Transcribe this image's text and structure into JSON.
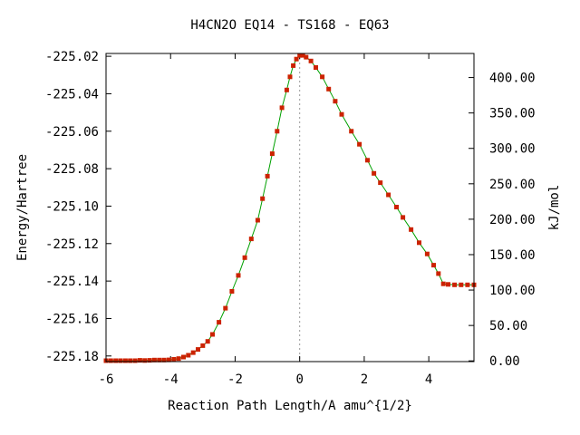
{
  "chart_data": {
    "type": "line",
    "title": "H4CN2O   EQ14 - TS168 - EQ63",
    "xlabel": "Reaction Path Length/A amu^{1/2}",
    "ylabel": "Energy/Hartree",
    "y2label": "kJ/mol",
    "xlim": [
      -6.0,
      5.4
    ],
    "ylim": [
      -225.183,
      -225.0185
    ],
    "y2lim": [
      -1.0,
      434.0
    ],
    "x_ticks": [
      {
        "value": -6,
        "label": "-6"
      },
      {
        "value": -4,
        "label": "-4"
      },
      {
        "value": -2,
        "label": "-2"
      },
      {
        "value": 0,
        "label": "0"
      },
      {
        "value": 2,
        "label": "2"
      },
      {
        "value": 4,
        "label": "4"
      }
    ],
    "y_ticks": [
      {
        "value": -225.02,
        "label": "-225.02"
      },
      {
        "value": -225.04,
        "label": "-225.04"
      },
      {
        "value": -225.06,
        "label": "-225.06"
      },
      {
        "value": -225.08,
        "label": "-225.08"
      },
      {
        "value": -225.1,
        "label": "-225.10"
      },
      {
        "value": -225.12,
        "label": "-225.12"
      },
      {
        "value": -225.14,
        "label": "-225.14"
      },
      {
        "value": -225.16,
        "label": "-225.16"
      },
      {
        "value": -225.18,
        "label": "-225.18"
      }
    ],
    "y2_ticks": [
      {
        "value": 0,
        "label": "0.00"
      },
      {
        "value": 50,
        "label": "50.00"
      },
      {
        "value": 100,
        "label": "100.00"
      },
      {
        "value": 150,
        "label": "150.00"
      },
      {
        "value": 200,
        "label": "200.00"
      },
      {
        "value": 250,
        "label": "250.00"
      },
      {
        "value": 300,
        "label": "300.00"
      },
      {
        "value": 350,
        "label": "350.00"
      },
      {
        "value": 400,
        "label": "400.00"
      }
    ],
    "ts_marker_x": 0.0,
    "line_color": "#00a000",
    "marker_color": "#cc2200",
    "reference_line_color": "#999999",
    "series": [
      {
        "x": [
          -6.0,
          -5.85,
          -5.7,
          -5.55,
          -5.4,
          -5.25,
          -5.1,
          -4.95,
          -4.8,
          -4.65,
          -4.5,
          -4.35,
          -4.2,
          -4.05,
          -3.9,
          -3.75,
          -3.6,
          -3.45,
          -3.3,
          -3.15,
          -3.0,
          -2.85,
          -2.7,
          -2.5,
          -2.3,
          -2.1,
          -1.9,
          -1.7,
          -1.5,
          -1.3,
          -1.15,
          -1.0,
          -0.85,
          -0.7,
          -0.55,
          -0.4,
          -0.3,
          -0.2,
          -0.1,
          0.0,
          0.1,
          0.2,
          0.35,
          0.5,
          0.7,
          0.9,
          1.1,
          1.3,
          1.6,
          1.85,
          2.1,
          2.3,
          2.5,
          2.75,
          3.0,
          3.2,
          3.45,
          3.7,
          3.95,
          4.15,
          4.3,
          4.45,
          4.6,
          4.8,
          5.0,
          5.2,
          5.4
        ],
        "y": [
          -225.1825,
          -225.1825,
          -225.1825,
          -225.1825,
          -225.1825,
          -225.1825,
          -225.1825,
          -225.1823,
          -225.1824,
          -225.1823,
          -225.1822,
          -225.1822,
          -225.1822,
          -225.1821,
          -225.1818,
          -225.1814,
          -225.1806,
          -225.1796,
          -225.1782,
          -225.1765,
          -225.1745,
          -225.1722,
          -225.1685,
          -225.162,
          -225.1545,
          -225.1455,
          -225.137,
          -225.1275,
          -225.1175,
          -225.1075,
          -225.096,
          -225.084,
          -225.072,
          -225.06,
          -225.0475,
          -225.038,
          -225.031,
          -225.025,
          -225.0215,
          -225.0195,
          -225.0195,
          -225.0205,
          -225.0225,
          -225.026,
          -225.031,
          -225.0375,
          -225.044,
          -225.051,
          -225.06,
          -225.067,
          -225.0755,
          -225.0825,
          -225.0875,
          -225.094,
          -225.1005,
          -225.106,
          -225.1125,
          -225.1195,
          -225.1255,
          -225.1315,
          -225.136,
          -225.1415,
          -225.1418,
          -225.142,
          -225.142,
          -225.142,
          -225.142
        ]
      }
    ]
  }
}
